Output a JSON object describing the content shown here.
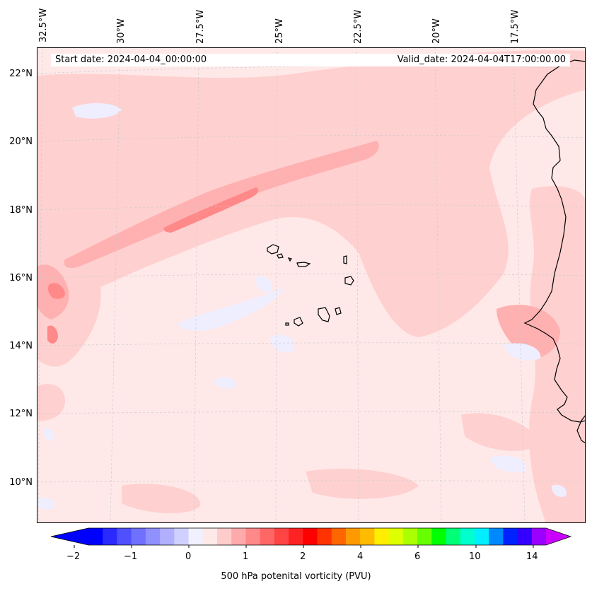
{
  "map": {
    "info": {
      "start_date": "Start date: 2024-04-04_00:00:00",
      "valid_date": "Valid_date: 2024-04-04T17:00:00.00"
    },
    "longitude_labels": [
      "32.5°W",
      "30°W",
      "27.5°W",
      "25°W",
      "22.5°W",
      "20°W",
      "17.5°W"
    ],
    "latitude_labels": [
      "22°N",
      "20°N",
      "18°N",
      "16°N",
      "14°N",
      "12°N",
      "10°N"
    ],
    "field_colors": {
      "background": "#ffe8e8",
      "pale": "#ffd0d0",
      "medium": "#ffb0b0",
      "strong": "#ff8888",
      "negative": "#eeeeff",
      "coastline": "#000000"
    }
  },
  "colorbar": {
    "title": "500 hPa potenital vorticity (PVU)",
    "tick_labels": [
      "−2",
      "−1",
      "0",
      "1",
      "2",
      "4",
      "6",
      "10",
      "14"
    ],
    "colors": [
      "#0000ff",
      "#2a2aff",
      "#5050ff",
      "#7070ff",
      "#9090ff",
      "#b0b0ff",
      "#d0d0ff",
      "#f0f0ff",
      "#ffe8e8",
      "#ffcccc",
      "#ffaaaa",
      "#ff8888",
      "#ff6666",
      "#ff4444",
      "#ff2222",
      "#ff0000",
      "#ff3300",
      "#ff6600",
      "#ff9900",
      "#ffbb00",
      "#ffee00",
      "#ddff00",
      "#aaff00",
      "#66ff00",
      "#00ff00",
      "#00ff77",
      "#00ffcc",
      "#00eeff",
      "#0088ff",
      "#0022ff",
      "#3300ff",
      "#9900ff"
    ],
    "extend_min_color": "#0000ff",
    "extend_max_color": "#cc00ff"
  }
}
